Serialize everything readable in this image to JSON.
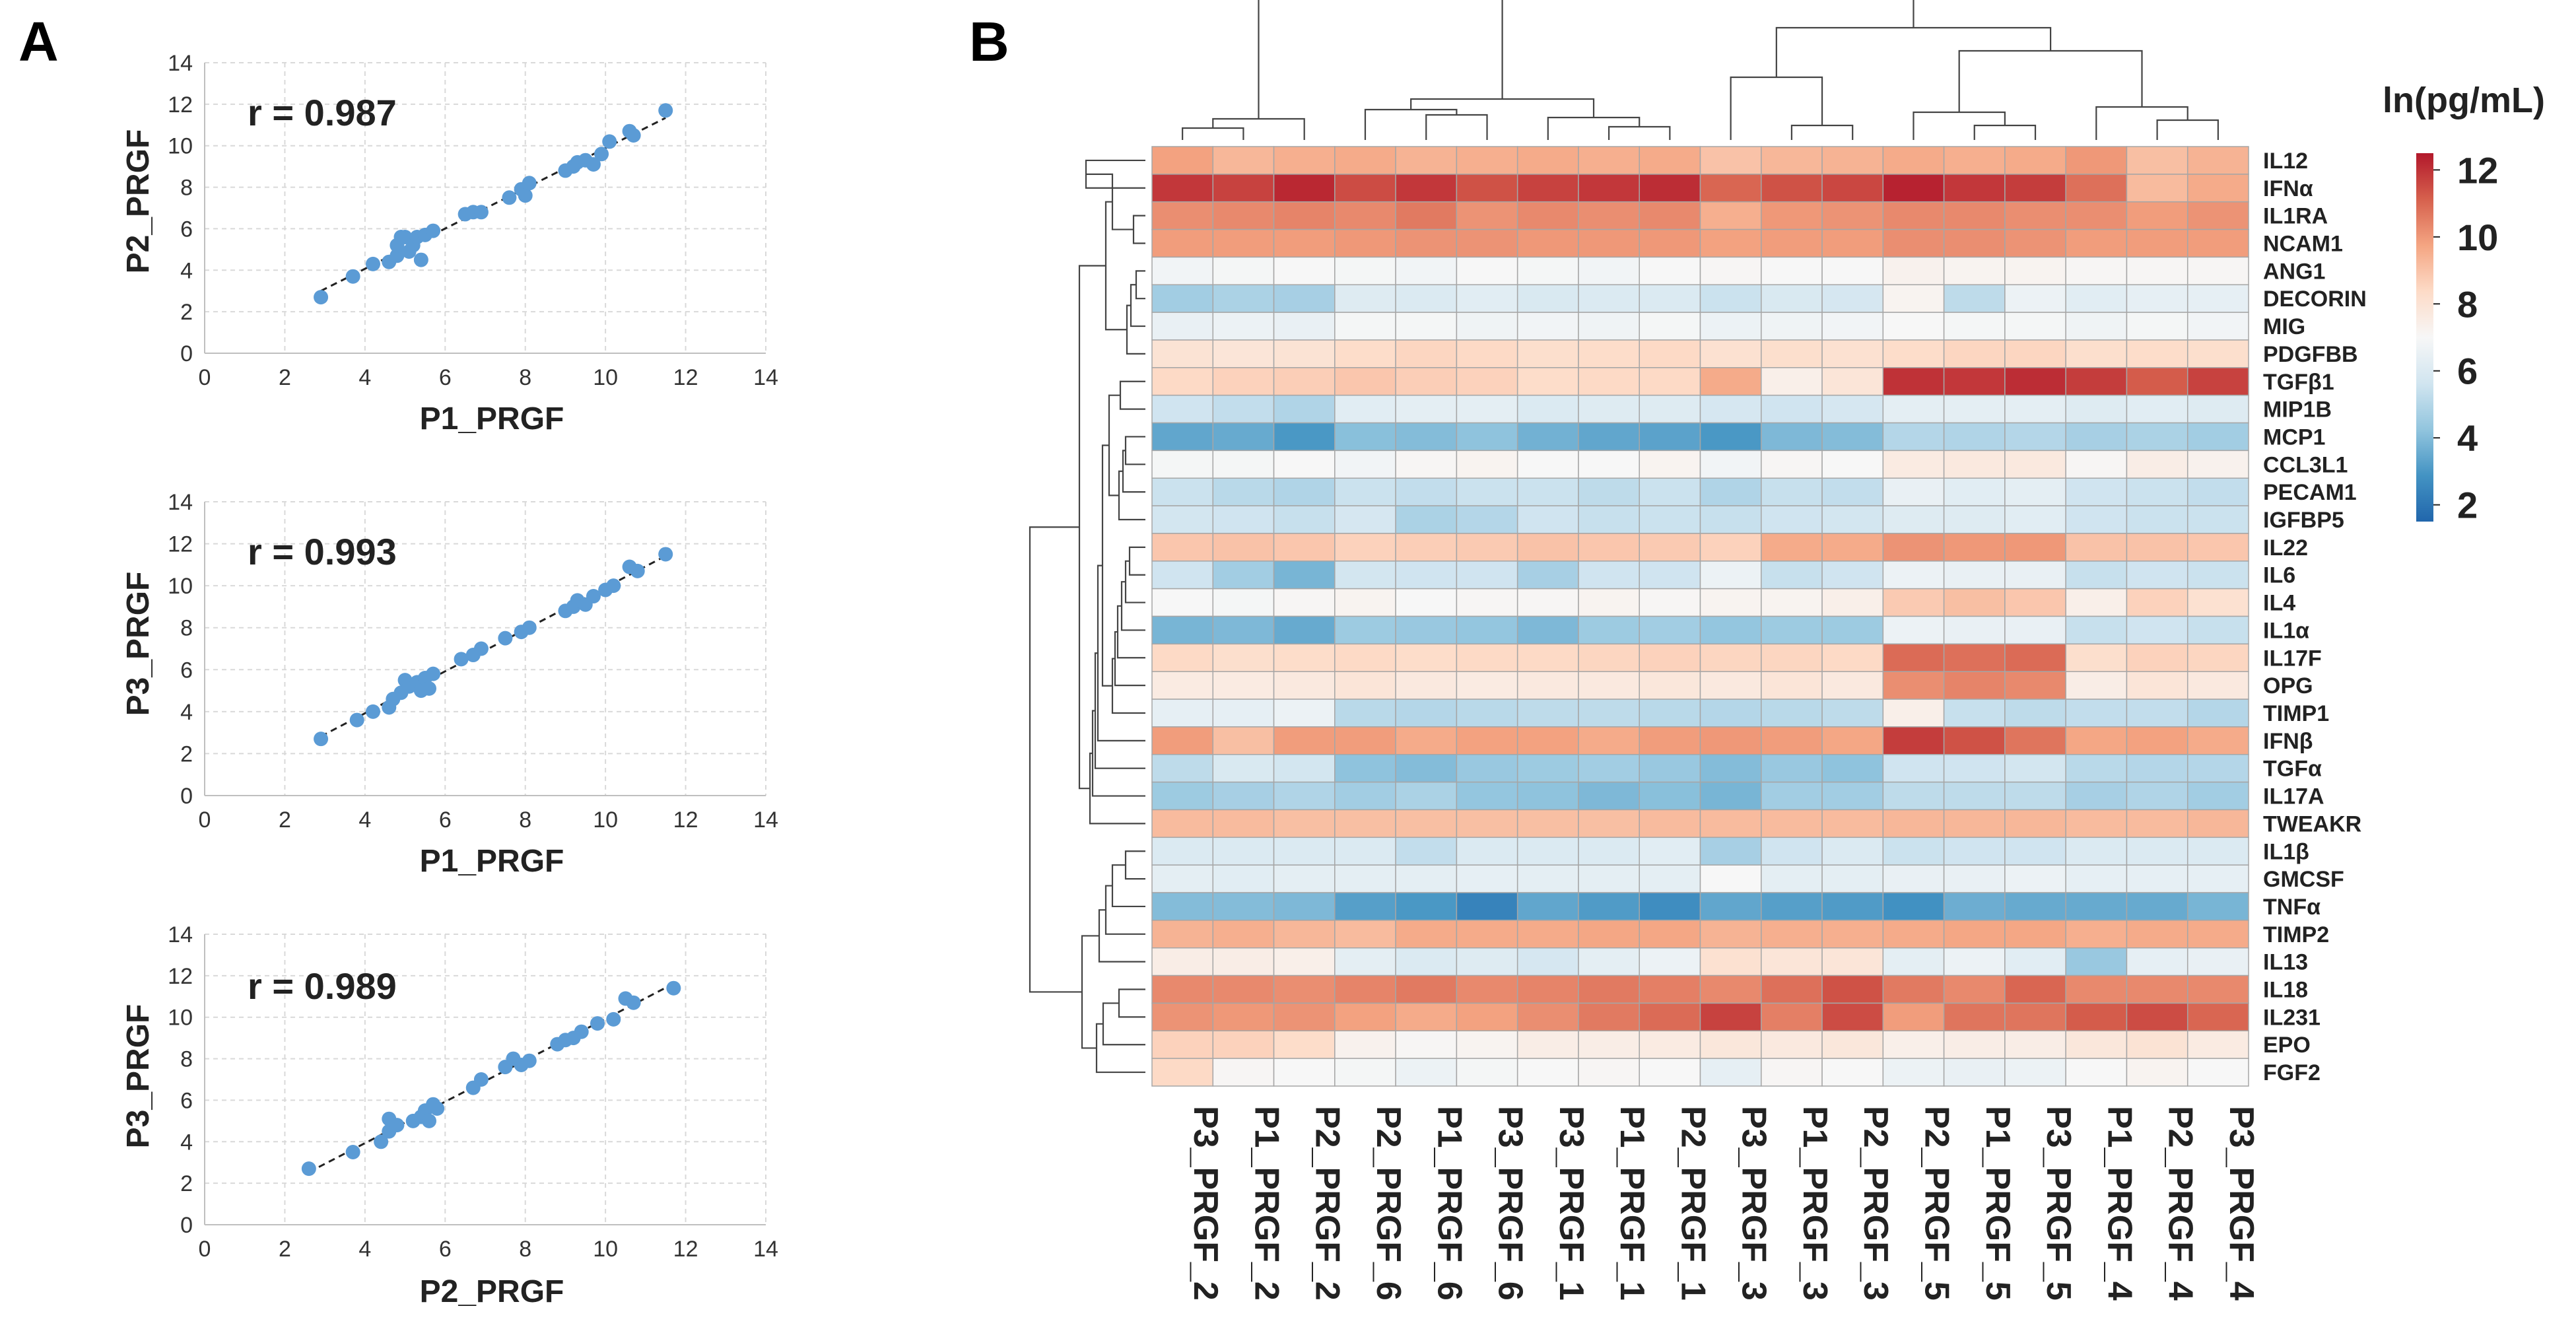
{
  "figure": {
    "panel_a_letter": "A",
    "panel_b_letter": "B"
  },
  "chart_data": [
    {
      "type": "scatter",
      "title": "",
      "r_label": "r = 0.987",
      "xlabel": "P1_PRGF",
      "ylabel": "P2_PRGF",
      "xlim": [
        0,
        14
      ],
      "ylim": [
        0,
        14
      ],
      "xticks": [
        0,
        2,
        4,
        6,
        8,
        10,
        12,
        14
      ],
      "yticks": [
        0,
        2,
        4,
        6,
        8,
        10,
        12,
        14
      ],
      "grid": true,
      "trendline": true,
      "marker_color": "#5b9bd5",
      "points": [
        [
          2.9,
          2.7
        ],
        [
          3.7,
          3.7
        ],
        [
          4.2,
          4.3
        ],
        [
          4.6,
          4.4
        ],
        [
          4.8,
          4.7
        ],
        [
          4.9,
          5.6
        ],
        [
          4.8,
          5.2
        ],
        [
          5.0,
          5.6
        ],
        [
          5.1,
          4.9
        ],
        [
          5.2,
          5.2
        ],
        [
          5.3,
          5.6
        ],
        [
          5.4,
          4.5
        ],
        [
          5.5,
          5.7
        ],
        [
          5.7,
          5.9
        ],
        [
          6.5,
          6.7
        ],
        [
          6.7,
          6.8
        ],
        [
          6.9,
          6.8
        ],
        [
          7.6,
          7.5
        ],
        [
          7.9,
          7.9
        ],
        [
          8.0,
          7.6
        ],
        [
          8.1,
          8.2
        ],
        [
          9.0,
          8.8
        ],
        [
          9.2,
          9.0
        ],
        [
          9.3,
          9.2
        ],
        [
          9.5,
          9.3
        ],
        [
          9.7,
          9.1
        ],
        [
          9.9,
          9.6
        ],
        [
          10.1,
          10.2
        ],
        [
          10.6,
          10.7
        ],
        [
          10.7,
          10.5
        ],
        [
          11.5,
          11.7
        ]
      ]
    },
    {
      "type": "scatter",
      "title": "",
      "r_label": "r = 0.993",
      "xlabel": "P1_PRGF",
      "ylabel": "P3_PRGF",
      "xlim": [
        0,
        14
      ],
      "ylim": [
        0,
        14
      ],
      "xticks": [
        0,
        2,
        4,
        6,
        8,
        10,
        12,
        14
      ],
      "yticks": [
        0,
        2,
        4,
        6,
        8,
        10,
        12,
        14
      ],
      "grid": true,
      "trendline": true,
      "marker_color": "#5b9bd5",
      "points": [
        [
          2.9,
          2.7
        ],
        [
          3.8,
          3.6
        ],
        [
          4.2,
          4.0
        ],
        [
          4.6,
          4.2
        ],
        [
          4.7,
          4.6
        ],
        [
          4.9,
          4.9
        ],
        [
          5.0,
          5.5
        ],
        [
          5.1,
          5.2
        ],
        [
          5.3,
          5.4
        ],
        [
          5.4,
          5.0
        ],
        [
          5.5,
          5.6
        ],
        [
          5.6,
          5.1
        ],
        [
          5.7,
          5.8
        ],
        [
          6.4,
          6.5
        ],
        [
          6.7,
          6.7
        ],
        [
          6.9,
          7.0
        ],
        [
          7.5,
          7.5
        ],
        [
          7.9,
          7.8
        ],
        [
          8.1,
          8.0
        ],
        [
          9.0,
          8.8
        ],
        [
          9.2,
          9.0
        ],
        [
          9.3,
          9.3
        ],
        [
          9.5,
          9.1
        ],
        [
          9.7,
          9.5
        ],
        [
          10.0,
          9.8
        ],
        [
          10.2,
          10.0
        ],
        [
          10.6,
          10.9
        ],
        [
          10.8,
          10.7
        ],
        [
          11.5,
          11.5
        ]
      ]
    },
    {
      "type": "scatter",
      "title": "",
      "r_label": "r = 0.989",
      "xlabel": "P2_PRGF",
      "ylabel": "P3_PRGF",
      "xlim": [
        0,
        14
      ],
      "ylim": [
        0,
        14
      ],
      "xticks": [
        0,
        2,
        4,
        6,
        8,
        10,
        12,
        14
      ],
      "yticks": [
        0,
        2,
        4,
        6,
        8,
        10,
        12,
        14
      ],
      "grid": true,
      "trendline": true,
      "marker_color": "#5b9bd5",
      "points": [
        [
          2.6,
          2.7
        ],
        [
          3.7,
          3.5
        ],
        [
          4.4,
          4.0
        ],
        [
          4.6,
          4.5
        ],
        [
          4.6,
          5.1
        ],
        [
          4.8,
          4.8
        ],
        [
          5.2,
          5.0
        ],
        [
          5.4,
          5.2
        ],
        [
          5.5,
          5.5
        ],
        [
          5.6,
          5.0
        ],
        [
          5.7,
          5.8
        ],
        [
          5.8,
          5.6
        ],
        [
          6.7,
          6.6
        ],
        [
          6.9,
          7.0
        ],
        [
          7.5,
          7.6
        ],
        [
          7.7,
          8.0
        ],
        [
          7.9,
          7.7
        ],
        [
          8.1,
          7.9
        ],
        [
          8.8,
          8.7
        ],
        [
          9.0,
          8.9
        ],
        [
          9.2,
          9.0
        ],
        [
          9.4,
          9.3
        ],
        [
          9.8,
          9.7
        ],
        [
          10.2,
          9.9
        ],
        [
          10.5,
          10.9
        ],
        [
          10.7,
          10.7
        ],
        [
          11.7,
          11.4
        ]
      ]
    },
    {
      "type": "heatmap",
      "title": "",
      "colorbar_title": "ln(pg/mL)",
      "colorbar_ticks": [
        2,
        4,
        6,
        8,
        10,
        12
      ],
      "value_range": [
        1.5,
        12.5
      ],
      "colorscale": [
        "#2166ac",
        "#4393c3",
        "#92c5de",
        "#d1e5f0",
        "#f7f7f7",
        "#fddbc7",
        "#f4a582",
        "#d6604d",
        "#b2182b"
      ],
      "columns": [
        "P3_PRGF_2",
        "P1_PRGF_2",
        "P2_PRGF_2",
        "P2_PRGF_6",
        "P1_PRGF_6",
        "P3_PRGF_6",
        "P3_PRGF_1",
        "P1_PRGF_1",
        "P2_PRGF_1",
        "P3_PRGF_3",
        "P1_PRGF_3",
        "P2_PRGF_3",
        "P2_PRGF_5",
        "P1_PRGF_5",
        "P3_PRGF_5",
        "P1_PRGF_4",
        "P2_PRGF_4",
        "P3_PRGF_4"
      ],
      "rows": [
        "IL12",
        "IFNα",
        "IL1RA",
        "NCAM1",
        "ANG1",
        "DECORIN",
        "MIG",
        "PDGFBB",
        "TGFβ1",
        "MIP1B",
        "MCP1",
        "CCL3L1",
        "PECAM1",
        "IGFBP5",
        "IL22",
        "IL6",
        "IL4",
        "IL1α",
        "IL17F",
        "OPG",
        "TIMP1",
        "IFNβ",
        "TGFα",
        "IL17A",
        "TWEAKR",
        "IL1β",
        "GMCSF",
        "TNFα",
        "TIMP2",
        "IL13",
        "IL18",
        "IL231",
        "EPO",
        "FGF2"
      ],
      "values": [
        [
          9.8,
          9.3,
          9.5,
          9.6,
          9.4,
          9.5,
          9.6,
          9.5,
          9.6,
          9.0,
          9.3,
          9.4,
          9.6,
          9.5,
          9.6,
          10.0,
          9.1,
          9.4
        ],
        [
          11.9,
          11.7,
          12.2,
          11.5,
          11.9,
          11.4,
          11.7,
          11.9,
          12.1,
          11.0,
          11.4,
          11.6,
          12.3,
          11.9,
          11.8,
          10.8,
          9.2,
          9.6
        ],
        [
          10.2,
          10.3,
          10.4,
          10.3,
          10.6,
          10.1,
          10.3,
          10.2,
          10.3,
          9.5,
          10.0,
          10.1,
          10.3,
          10.3,
          10.2,
          10.2,
          9.9,
          10.1
        ],
        [
          9.9,
          9.9,
          9.9,
          10.0,
          10.1,
          10.1,
          10.0,
          10.0,
          10.0,
          9.8,
          9.9,
          9.9,
          10.2,
          10.2,
          10.1,
          9.9,
          9.9,
          9.9
        ],
        [
          6.8,
          6.9,
          7.0,
          6.9,
          6.8,
          7.0,
          6.9,
          6.8,
          7.0,
          7.1,
          7.0,
          7.0,
          7.3,
          7.2,
          7.2,
          7.1,
          7.1,
          7.1
        ],
        [
          4.6,
          4.8,
          4.7,
          6.1,
          6.0,
          6.2,
          5.9,
          6.0,
          6.0,
          5.5,
          5.9,
          5.8,
          7.2,
          5.2,
          6.6,
          6.2,
          6.4,
          6.4
        ],
        [
          6.5,
          6.6,
          6.5,
          6.9,
          6.9,
          6.7,
          6.8,
          6.7,
          6.9,
          6.6,
          6.7,
          6.8,
          7.0,
          6.9,
          6.9,
          6.7,
          6.9,
          6.8
        ],
        [
          8.0,
          7.9,
          8.0,
          8.3,
          8.5,
          8.4,
          8.2,
          8.3,
          8.4,
          8.1,
          8.2,
          8.1,
          8.3,
          8.5,
          8.5,
          8.2,
          8.3,
          8.2
        ],
        [
          8.4,
          8.6,
          8.7,
          8.9,
          8.7,
          8.6,
          8.3,
          8.4,
          8.4,
          9.6,
          7.4,
          7.9,
          12.0,
          11.9,
          12.1,
          11.8,
          11.2,
          11.7
        ],
        [
          5.6,
          5.3,
          4.9,
          6.2,
          6.3,
          6.3,
          6.0,
          6.1,
          6.1,
          5.8,
          5.6,
          5.8,
          6.3,
          6.3,
          6.3,
          6.1,
          6.2,
          6.1
        ],
        [
          3.4,
          3.5,
          3.0,
          4.1,
          4.0,
          4.2,
          3.7,
          3.4,
          3.3,
          3.0,
          3.9,
          4.0,
          5.0,
          4.9,
          5.0,
          4.7,
          4.8,
          4.6
        ],
        [
          6.9,
          6.9,
          7.0,
          6.8,
          7.1,
          7.2,
          7.0,
          7.0,
          7.2,
          6.8,
          7.1,
          7.0,
          7.6,
          7.7,
          7.7,
          7.1,
          7.5,
          7.3
        ],
        [
          5.5,
          5.1,
          4.9,
          5.5,
          5.3,
          5.5,
          5.5,
          5.2,
          5.5,
          4.9,
          5.4,
          5.3,
          6.5,
          6.2,
          6.3,
          5.6,
          5.5,
          5.3
        ],
        [
          5.7,
          5.6,
          5.4,
          5.8,
          4.8,
          5.0,
          5.6,
          5.4,
          5.5,
          5.4,
          5.6,
          5.7,
          6.1,
          6.1,
          6.2,
          5.6,
          5.5,
          5.5
        ],
        [
          8.9,
          9.0,
          8.9,
          8.6,
          8.7,
          8.8,
          9.0,
          8.9,
          8.8,
          8.6,
          9.6,
          9.6,
          10.1,
          10.0,
          10.0,
          9.0,
          9.0,
          8.9
        ],
        [
          5.6,
          4.6,
          3.8,
          5.7,
          5.6,
          5.6,
          4.7,
          5.6,
          5.6,
          6.6,
          5.4,
          5.6,
          6.6,
          6.5,
          6.5,
          5.4,
          5.6,
          5.5
        ],
        [
          7.0,
          6.9,
          7.1,
          7.2,
          7.0,
          7.1,
          7.1,
          7.2,
          7.1,
          7.2,
          7.2,
          7.4,
          8.8,
          9.1,
          8.9,
          7.4,
          8.6,
          8.1
        ],
        [
          3.8,
          3.9,
          3.5,
          4.5,
          4.4,
          4.3,
          3.9,
          4.5,
          4.6,
          4.3,
          4.5,
          4.5,
          6.6,
          6.5,
          6.5,
          5.4,
          5.6,
          5.4
        ],
        [
          8.4,
          8.2,
          8.3,
          8.4,
          8.3,
          8.4,
          8.4,
          8.5,
          8.6,
          8.5,
          8.5,
          8.4,
          10.9,
          10.8,
          10.9,
          8.2,
          8.6,
          8.5
        ],
        [
          7.6,
          7.6,
          7.7,
          7.9,
          7.7,
          7.6,
          7.7,
          7.7,
          7.8,
          7.7,
          7.9,
          7.7,
          10.2,
          10.4,
          10.3,
          7.5,
          7.9,
          7.7
        ],
        [
          6.4,
          6.4,
          6.6,
          5.1,
          5.0,
          5.1,
          5.2,
          5.2,
          5.1,
          5.0,
          5.1,
          5.2,
          7.4,
          5.4,
          5.2,
          5.3,
          5.3,
          5.0
        ],
        [
          9.9,
          9.1,
          9.9,
          9.9,
          9.6,
          9.8,
          9.8,
          9.6,
          9.9,
          10.0,
          9.9,
          9.7,
          11.8,
          11.4,
          10.7,
          9.7,
          9.8,
          9.6
        ],
        [
          5.2,
          5.9,
          5.7,
          4.2,
          4.0,
          4.4,
          4.5,
          4.6,
          4.4,
          4.0,
          4.4,
          4.2,
          5.6,
          5.6,
          5.7,
          5.1,
          5.0,
          5.0
        ],
        [
          4.5,
          4.7,
          4.9,
          4.6,
          4.8,
          4.3,
          4.2,
          3.9,
          4.1,
          3.8,
          4.6,
          4.6,
          5.2,
          5.2,
          5.2,
          4.7,
          4.9,
          4.6
        ],
        [
          9.2,
          9.2,
          9.1,
          9.1,
          9.1,
          9.1,
          9.1,
          9.1,
          9.2,
          9.2,
          9.2,
          9.2,
          9.3,
          9.3,
          9.3,
          9.2,
          9.2,
          9.3
        ],
        [
          6.0,
          6.0,
          6.0,
          6.0,
          5.3,
          6.0,
          6.0,
          6.0,
          6.2,
          4.7,
          5.6,
          6.0,
          5.5,
          5.6,
          5.6,
          6.0,
          6.0,
          6.0
        ],
        [
          6.3,
          6.2,
          6.3,
          6.3,
          6.3,
          6.4,
          6.3,
          6.3,
          6.3,
          7.0,
          6.3,
          6.3,
          6.5,
          6.5,
          6.6,
          6.4,
          6.4,
          6.4
        ],
        [
          4.0,
          4.0,
          3.9,
          3.2,
          3.0,
          2.4,
          3.4,
          3.1,
          2.7,
          3.4,
          3.2,
          3.1,
          2.8,
          3.6,
          3.5,
          3.5,
          3.5,
          3.8
        ],
        [
          9.4,
          9.5,
          9.3,
          9.2,
          9.6,
          9.6,
          9.6,
          9.7,
          9.7,
          9.4,
          9.5,
          9.5,
          9.6,
          9.7,
          9.7,
          9.5,
          9.6,
          9.6
        ],
        [
          7.5,
          7.5,
          7.4,
          6.3,
          6.0,
          6.1,
          5.8,
          6.3,
          6.6,
          8.1,
          7.9,
          7.9,
          6.3,
          6.6,
          6.2,
          4.4,
          6.4,
          6.5
        ],
        [
          10.3,
          10.3,
          10.2,
          10.4,
          10.6,
          10.3,
          10.4,
          10.6,
          10.5,
          10.3,
          10.8,
          11.4,
          10.6,
          10.3,
          11.0,
          10.3,
          10.3,
          10.3
        ],
        [
          10.1,
          10.0,
          10.1,
          9.8,
          9.6,
          9.8,
          10.2,
          10.6,
          10.9,
          11.7,
          10.5,
          11.5,
          9.9,
          10.7,
          10.7,
          11.2,
          11.5,
          11.0
        ],
        [
          8.6,
          8.6,
          8.3,
          7.3,
          7.1,
          7.2,
          7.5,
          7.5,
          7.6,
          7.8,
          7.7,
          7.8,
          7.4,
          7.5,
          7.5,
          7.8,
          8.0,
          7.6
        ],
        [
          8.4,
          7.1,
          7.0,
          6.9,
          6.6,
          6.9,
          7.0,
          7.1,
          7.0,
          6.4,
          7.1,
          7.0,
          6.6,
          6.5,
          6.6,
          7.0,
          7.2,
          7.0
        ]
      ]
    }
  ]
}
